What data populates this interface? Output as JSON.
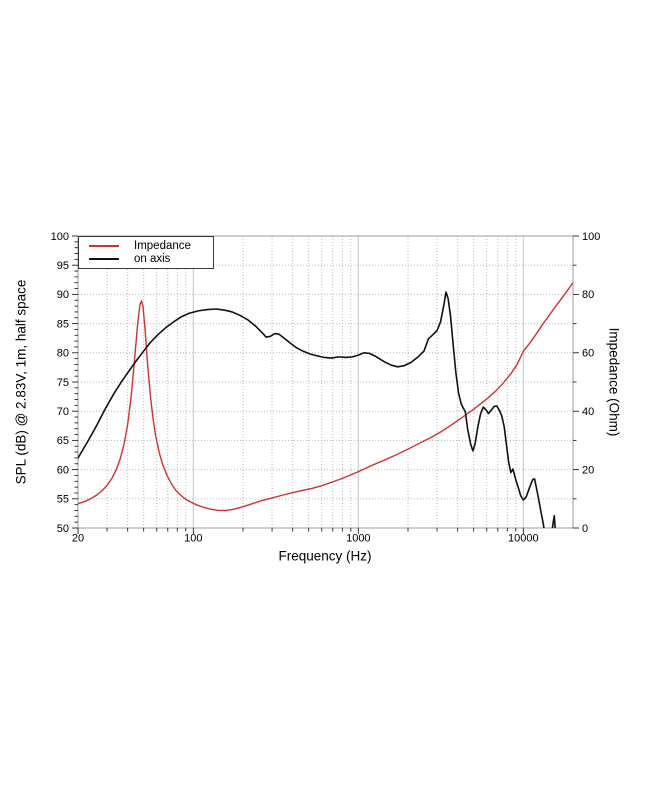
{
  "chart_data": {
    "type": "line",
    "title": "",
    "x": {
      "scale": "log",
      "min": 20,
      "max": 20000,
      "label": "Frequency (Hz)",
      "tick_values": [
        20,
        100,
        1000,
        10000
      ],
      "tick_labels": [
        "20",
        "100",
        "1000",
        "10000"
      ]
    },
    "y_left": {
      "min": 50,
      "max": 100,
      "label": "SPL (dB) @ 2.83V, 1m, half space",
      "tick_values": [
        50,
        55,
        60,
        65,
        70,
        75,
        80,
        85,
        90,
        95,
        100
      ],
      "tick_labels": [
        "50",
        "55",
        "60",
        "65",
        "70",
        "75",
        "80",
        "85",
        "90",
        "95",
        "100"
      ],
      "minor_step": 1
    },
    "y_right": {
      "min": 0,
      "max": 100,
      "label": "Impedance (Ohm)",
      "tick_values": [
        0,
        20,
        40,
        60,
        80,
        100
      ],
      "tick_labels": [
        "0",
        "20",
        "40",
        "60",
        "80",
        "100"
      ],
      "minor_step": 10
    },
    "grid": {
      "horizontal_step_db": 5,
      "vertical": "log-minor-dotted, decade-solid"
    },
    "legend_position": "top-left",
    "series": [
      {
        "name": "Impedance",
        "axis": "right",
        "unit": "Ohm",
        "color": "#cc3333",
        "width": 1.4,
        "points": [
          [
            20,
            8.3
          ],
          [
            22,
            9.1
          ],
          [
            24,
            10.1
          ],
          [
            26,
            11.3
          ],
          [
            28,
            12.8
          ],
          [
            30,
            14.6
          ],
          [
            32,
            16.9
          ],
          [
            34,
            19.8
          ],
          [
            36,
            23.6
          ],
          [
            38,
            28.6
          ],
          [
            40,
            35.5
          ],
          [
            42,
            45
          ],
          [
            44,
            57.5
          ],
          [
            46,
            70
          ],
          [
            47.5,
            76.5
          ],
          [
            48.5,
            77.8
          ],
          [
            49.5,
            76
          ],
          [
            51,
            68
          ],
          [
            53,
            55
          ],
          [
            55,
            45
          ],
          [
            57,
            37.5
          ],
          [
            59,
            31.8
          ],
          [
            62,
            26
          ],
          [
            65,
            22
          ],
          [
            69,
            18.2
          ],
          [
            73,
            15.5
          ],
          [
            78,
            13
          ],
          [
            84,
            11.2
          ],
          [
            90,
            9.8
          ],
          [
            97,
            8.8
          ],
          [
            105,
            7.9
          ],
          [
            115,
            7.1
          ],
          [
            128,
            6.4
          ],
          [
            142,
            6.0
          ],
          [
            158,
            6.0
          ],
          [
            175,
            6.4
          ],
          [
            200,
            7.3
          ],
          [
            230,
            8.4
          ],
          [
            260,
            9.4
          ],
          [
            300,
            10.3
          ],
          [
            350,
            11.3
          ],
          [
            400,
            12.1
          ],
          [
            460,
            12.9
          ],
          [
            520,
            13.5
          ],
          [
            600,
            14.5
          ],
          [
            700,
            15.8
          ],
          [
            800,
            17.0
          ],
          [
            900,
            18.2
          ],
          [
            1000,
            19.3
          ],
          [
            1150,
            20.9
          ],
          [
            1300,
            22.2
          ],
          [
            1500,
            23.7
          ],
          [
            1700,
            25.1
          ],
          [
            2000,
            27.0
          ],
          [
            2400,
            29.3
          ],
          [
            2800,
            31.2
          ],
          [
            3200,
            33.1
          ],
          [
            3600,
            35.0
          ],
          [
            4000,
            36.8
          ],
          [
            4500,
            38.8
          ],
          [
            5000,
            40.7
          ],
          [
            5500,
            42.5
          ],
          [
            6000,
            44.2
          ],
          [
            6800,
            46.9
          ],
          [
            7600,
            49.8
          ],
          [
            8400,
            52.8
          ],
          [
            9200,
            56.2
          ],
          [
            10000,
            60.5
          ],
          [
            11000,
            63.5
          ],
          [
            12000,
            66.5
          ],
          [
            13000,
            69.5
          ],
          [
            14000,
            72.0
          ],
          [
            15500,
            75.5
          ],
          [
            17000,
            78.5
          ],
          [
            18500,
            81.3
          ],
          [
            20000,
            84.0
          ]
        ]
      },
      {
        "name": "on axis",
        "axis": "left",
        "unit": "dB",
        "color": "#111111",
        "width": 1.6,
        "points": [
          [
            20,
            62.0
          ],
          [
            23,
            64.9
          ],
          [
            26,
            67.6
          ],
          [
            29,
            70.2
          ],
          [
            33,
            73.0
          ],
          [
            37,
            75.2
          ],
          [
            41,
            77.0
          ],
          [
            45,
            78.6
          ],
          [
            50,
            80.3
          ],
          [
            55,
            81.8
          ],
          [
            61,
            83.1
          ],
          [
            68,
            84.3
          ],
          [
            76,
            85.3
          ],
          [
            85,
            86.2
          ],
          [
            95,
            86.8
          ],
          [
            108,
            87.2
          ],
          [
            122,
            87.4
          ],
          [
            138,
            87.5
          ],
          [
            155,
            87.3
          ],
          [
            172,
            87.0
          ],
          [
            192,
            86.4
          ],
          [
            215,
            85.6
          ],
          [
            240,
            84.5
          ],
          [
            262,
            83.4
          ],
          [
            276,
            82.7
          ],
          [
            292,
            82.8
          ],
          [
            312,
            83.3
          ],
          [
            330,
            83.2
          ],
          [
            352,
            82.6
          ],
          [
            385,
            81.7
          ],
          [
            420,
            80.9
          ],
          [
            460,
            80.3
          ],
          [
            510,
            79.8
          ],
          [
            560,
            79.5
          ],
          [
            620,
            79.2
          ],
          [
            690,
            79.1
          ],
          [
            760,
            79.3
          ],
          [
            840,
            79.2
          ],
          [
            920,
            79.3
          ],
          [
            1000,
            79.6
          ],
          [
            1080,
            80.0
          ],
          [
            1170,
            79.9
          ],
          [
            1290,
            79.3
          ],
          [
            1430,
            78.5
          ],
          [
            1580,
            77.9
          ],
          [
            1730,
            77.6
          ],
          [
            1900,
            77.8
          ],
          [
            2100,
            78.4
          ],
          [
            2300,
            79.3
          ],
          [
            2500,
            80.3
          ],
          [
            2660,
            82.4
          ],
          [
            2830,
            83.1
          ],
          [
            3000,
            83.8
          ],
          [
            3150,
            85.3
          ],
          [
            3300,
            88.2
          ],
          [
            3400,
            90.4
          ],
          [
            3500,
            89.3
          ],
          [
            3620,
            86.3
          ],
          [
            3750,
            81.6
          ],
          [
            3900,
            76.6
          ],
          [
            4050,
            73.1
          ],
          [
            4200,
            71.3
          ],
          [
            4330,
            70.5
          ],
          [
            4450,
            69.9
          ],
          [
            4600,
            66.9
          ],
          [
            4800,
            64.3
          ],
          [
            4950,
            63.2
          ],
          [
            5100,
            64.4
          ],
          [
            5300,
            67.3
          ],
          [
            5500,
            69.5
          ],
          [
            5720,
            70.7
          ],
          [
            5950,
            70.2
          ],
          [
            6150,
            69.6
          ],
          [
            6400,
            70.2
          ],
          [
            6650,
            70.8
          ],
          [
            6900,
            70.9
          ],
          [
            7150,
            70.2
          ],
          [
            7400,
            69.2
          ],
          [
            7650,
            67.4
          ],
          [
            7900,
            64.3
          ],
          [
            8150,
            61.3
          ],
          [
            8400,
            59.5
          ],
          [
            8650,
            60.1
          ],
          [
            8950,
            58.5
          ],
          [
            9300,
            57.0
          ],
          [
            9650,
            55.5
          ],
          [
            10000,
            54.8
          ],
          [
            10400,
            55.3
          ],
          [
            10900,
            56.9
          ],
          [
            11400,
            58.3
          ],
          [
            11700,
            58.4
          ],
          [
            12100,
            56.4
          ],
          [
            12500,
            54.3
          ],
          [
            12900,
            52.2
          ],
          [
            13200,
            50.8
          ],
          [
            13600,
            48.3
          ],
          [
            14100,
            47.2
          ],
          [
            14700,
            47.6
          ],
          [
            15100,
            50.6
          ],
          [
            15400,
            52.1
          ],
          [
            15700,
            48.8
          ],
          [
            15900,
            46.0
          ]
        ]
      }
    ]
  }
}
